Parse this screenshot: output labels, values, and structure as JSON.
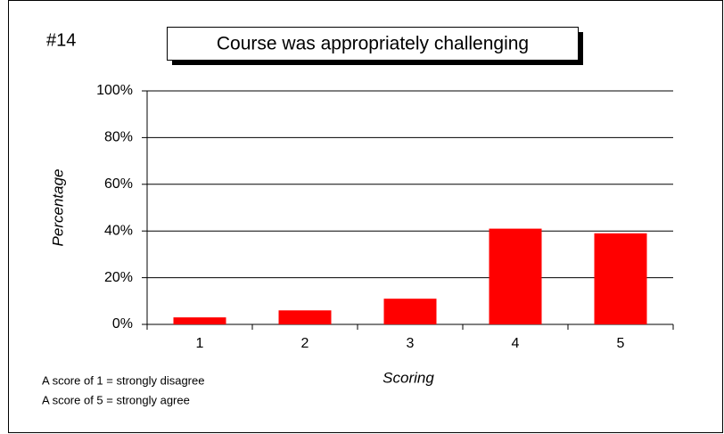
{
  "chart_data": {
    "type": "bar",
    "label": "#14",
    "title": "Course was appropriately challenging",
    "categories": [
      "1",
      "2",
      "3",
      "4",
      "5"
    ],
    "values": [
      3,
      6,
      11,
      41,
      39
    ],
    "color": "#ff0000",
    "ylim": [
      0,
      100
    ],
    "yticks": [
      {
        "value": 0,
        "label": "0%"
      },
      {
        "value": 20,
        "label": "20%"
      },
      {
        "value": 40,
        "label": "40%"
      },
      {
        "value": 60,
        "label": "60%"
      },
      {
        "value": 80,
        "label": "80%"
      },
      {
        "value": 100,
        "label": "100%"
      }
    ],
    "grid": true,
    "ylabel": "Percentage",
    "xlabel": "Scoring",
    "notes": [
      "A score of 1 = strongly disagree",
      "A score of 5 = strongly agree"
    ]
  }
}
